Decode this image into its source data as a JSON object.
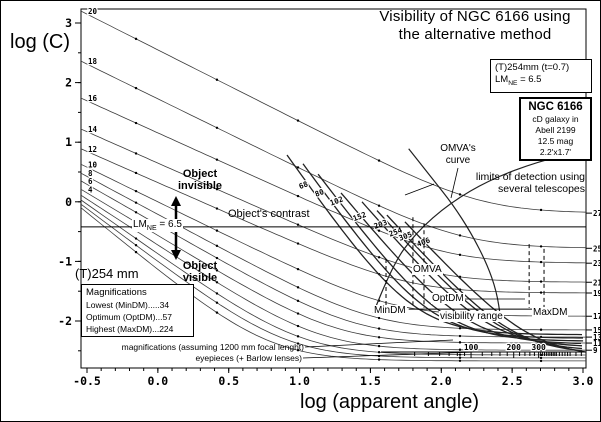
{
  "title": {
    "line1": "Visibility of NGC 6166 using",
    "line2": "the alternative method"
  },
  "axes": {
    "ylabel": "log (C)",
    "xlabel": "log (apparent angle)"
  },
  "box_telescope": {
    "line1": "(T)254mm (t=0.7)",
    "lm_base": "LM",
    "lm_sub": "NE",
    "lm_rest": " = 6.5"
  },
  "box_object": {
    "name": "NGC 6166",
    "line1": "cD galaxy in",
    "line2": "Abell 2199",
    "line3": "12.5 mag",
    "line4": "2.2'x1.7'"
  },
  "telescope_label": "(T)254 mm",
  "magnifications_box": {
    "header": "Magnifications",
    "row1": "Lowest (MinDM).....34",
    "row2": "Optimum (OptDM)...57",
    "row3": "Highest (MaxDM)...224"
  },
  "annotations": {
    "invisible1": "Object",
    "invisible2": "invisible",
    "contrast": "Object's contrast",
    "visible1": "Object",
    "visible2": "visible",
    "lm_base": "LM",
    "lm_sub": "NE",
    "lm_rest": " = 6.5",
    "omva": "OMVA",
    "optdm": "OptDM",
    "mindm": "MinDM",
    "maxdm": "MaxDM",
    "visibility_range": "visibility range",
    "omva_curve1": "OMVA's",
    "omva_curve2": "curve",
    "limits1": "limits of detection using",
    "limits2": "several telescopes",
    "note1": "magnifications (assuming 1200 mm focal lenght)",
    "note2": "eyepieces (+ Barlow lenses)"
  },
  "chart_data": {
    "type": "line",
    "title": "Visibility of NGC 6166 using the alternative method",
    "xlabel": "log (apparent angle)",
    "ylabel": "log (C)",
    "xlim": [
      -0.5,
      3.0
    ],
    "ylim": [
      -2.79,
      3.23
    ],
    "x_ticks": [
      "-0.5",
      "0.0",
      "0.5",
      "1.0",
      "1.5",
      "2.0",
      "2.5",
      "3.0"
    ],
    "x_tick_vals": [
      -0.5,
      0,
      0.5,
      1,
      1.5,
      2,
      2.5,
      3
    ],
    "x_minor_step": 0.1,
    "y_ticks": [
      "3",
      "2",
      "1",
      "0",
      "-1",
      "-2"
    ],
    "y_tick_vals": [
      3,
      2,
      1,
      0,
      -1,
      -2
    ],
    "y_minor_step": 0.5,
    "grid": false,
    "threshold_curves": [
      {
        "left_label": "20",
        "entry_logC": 3.2,
        "right_label": "27",
        "asymptote_logC": -0.19,
        "elbow_logA": 2.28
      },
      {
        "left_label": "18",
        "entry_logC": 2.36,
        "right_label": "25",
        "asymptote_logC": -0.78,
        "elbow_logA": 2.15
      },
      {
        "left_label": "16",
        "entry_logC": 1.74,
        "right_label": "23",
        "asymptote_logC": -1.03,
        "elbow_logA": 2.03
      },
      {
        "left_label": "14",
        "entry_logC": 1.22,
        "right_label": "21",
        "asymptote_logC": -1.35,
        "elbow_logA": 1.9
      },
      {
        "left_label": "12",
        "entry_logC": 0.89,
        "right_label": "19",
        "asymptote_logC": -1.53,
        "elbow_logA": 1.77
      },
      {
        "left_label": "10",
        "entry_logC": 0.63,
        "right_label": "17",
        "asymptote_logC": -1.92,
        "elbow_logA": 1.65
      },
      {
        "left_label": "8",
        "entry_logC": 0.48,
        "right_label": "15",
        "asymptote_logC": -2.15,
        "elbow_logA": 1.52
      },
      {
        "left_label": "6",
        "entry_logC": 0.35,
        "right_label": "13",
        "asymptote_logC": -2.27,
        "elbow_logA": 1.39
      },
      {
        "left_label": "4",
        "entry_logC": 0.21,
        "right_label": "11",
        "asymptote_logC": -2.37,
        "elbow_logA": 1.26
      },
      {
        "left_label": "",
        "entry_logC": 0.11,
        "right_label": "9",
        "asymptote_logC": -2.49,
        "elbow_logA": 1.14
      },
      {
        "left_label": "",
        "entry_logC": 0.03,
        "right_label": "",
        "asymptote_logC": -2.57,
        "elbow_logA": 1.01
      },
      {
        "left_label": "",
        "entry_logC": -0.04,
        "right_label": "",
        "asymptote_logC": -2.62,
        "elbow_logA": 0.9
      },
      {
        "left_label": "",
        "entry_logC": -0.1,
        "right_label": "",
        "asymptote_logC": -2.67,
        "elbow_logA": 0.78
      }
    ],
    "eyepiece_curves": [
      {
        "magnification": "68",
        "x": 1.095,
        "logC": 0.18,
        "asymptote_logC": -2.23
      },
      {
        "magnification": "80",
        "x": 1.208,
        "logC": 0.05,
        "asymptote_logC": -2.29
      },
      {
        "magnification": "102",
        "x": 1.314,
        "logC": -0.1,
        "asymptote_logC": -2.34
      },
      {
        "magnification": "152",
        "x": 1.476,
        "logC": -0.36,
        "asymptote_logC": -2.39
      },
      {
        "magnification": "203",
        "x": 1.624,
        "logC": -0.49,
        "asymptote_logC": -2.44
      },
      {
        "magnification": "254",
        "x": 1.73,
        "logC": -0.62,
        "asymptote_logC": -2.5
      },
      {
        "magnification": "305",
        "x": 1.8,
        "logC": -0.69,
        "asymptote_logC": -2.55
      },
      {
        "magnification": "406",
        "x": 1.927,
        "logC": -0.79,
        "asymptote_logC": -2.6
      }
    ],
    "omva_curve_points": [
      [
        1.52,
        -1.87
      ],
      [
        1.65,
        -1.08
      ],
      [
        1.82,
        -0.52
      ],
      [
        2.06,
        -0.02
      ],
      [
        2.35,
        0.38
      ],
      [
        2.69,
        0.68
      ],
      [
        3.0,
        0.85
      ]
    ],
    "limits_curve_points": [
      [
        1.77,
        0.89
      ],
      [
        1.94,
        0.38
      ],
      [
        2.08,
        -0.04
      ],
      [
        2.21,
        -0.52
      ],
      [
        2.32,
        -1.03
      ],
      [
        2.39,
        -1.5
      ],
      [
        2.42,
        -1.97
      ]
    ],
    "lm_line": {
      "logC": -0.42
    },
    "dashed_markers": [
      {
        "name": "MinDM",
        "x": 1.61,
        "y1": -0.96,
        "y2": -1.78
      },
      {
        "name": "OMVA-left",
        "x": 1.8,
        "y1": -0.26,
        "y2": -1.78
      },
      {
        "name": "OMVA-right",
        "x": 1.878,
        "y1": -0.36,
        "y2": -1.78
      },
      {
        "name": "OptDM",
        "x": 2.62,
        "y1": -0.71,
        "y2": -1.78
      },
      {
        "name": "MaxDM",
        "x": 2.725,
        "y1": -0.79,
        "y2": -1.78
      }
    ],
    "visibility_bracket": {
      "y": -1.8,
      "x1": 1.77,
      "x2": 2.64
    },
    "marker_dot_xs": [
      -0.154,
      0.417,
      0.989,
      1.561,
      2.132,
      2.704
    ],
    "magnification_ruler": {
      "y": -2.52,
      "x_start": 1.575,
      "x_of_100": 2.21,
      "major_labels": [
        "100",
        "200",
        "300"
      ],
      "major_vals": [
        100,
        200,
        300
      ],
      "minor_vals": [
        40,
        50,
        60,
        70,
        80,
        90,
        120,
        140,
        160,
        180,
        220,
        240,
        260,
        280,
        310,
        320,
        330,
        340,
        350,
        360,
        370,
        380,
        390,
        400,
        420,
        440,
        460,
        480,
        500,
        550,
        600
      ]
    }
  }
}
